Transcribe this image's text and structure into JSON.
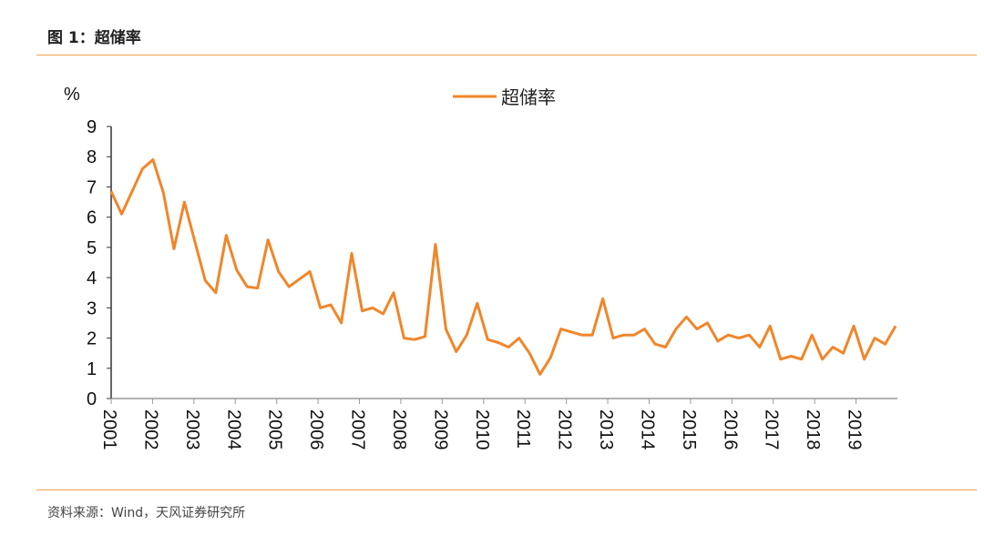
{
  "figure_title": "图 1：超储率",
  "source": "资料来源：Wind，天风证券研究所",
  "chart_data": {
    "type": "line",
    "title": "",
    "ylabel": "%",
    "xlabel": "",
    "ylim": [
      0,
      9
    ],
    "yticks": [
      "0",
      "1",
      "2",
      "3",
      "4",
      "5",
      "6",
      "7",
      "8",
      "9"
    ],
    "xticks": [
      "2001",
      "2002",
      "2003",
      "2004",
      "2005",
      "2006",
      "2007",
      "2008",
      "2009",
      "2010",
      "2011",
      "2012",
      "2013",
      "2014",
      "2015",
      "2016",
      "2017",
      "2018",
      "2019"
    ],
    "xlim": [
      2001,
      2020
    ],
    "grid": false,
    "legend": "top-center",
    "color": "#f0862a",
    "series": [
      {
        "name": "超储率",
        "values": [
          6.85,
          6.1,
          6.85,
          7.6,
          7.9,
          6.8,
          4.95,
          6.5,
          5.2,
          3.9,
          3.5,
          5.4,
          4.25,
          3.7,
          3.65,
          5.25,
          4.2,
          3.7,
          3.95,
          4.2,
          3.0,
          3.1,
          2.5,
          4.8,
          2.9,
          3.0,
          2.8,
          3.5,
          2.0,
          1.95,
          2.05,
          5.1,
          2.3,
          1.55,
          2.1,
          3.15,
          1.95,
          1.85,
          1.7,
          2.0,
          1.5,
          0.8,
          1.35,
          2.3,
          2.2,
          2.1,
          2.1,
          3.3,
          2.0,
          2.1,
          2.1,
          2.3,
          1.8,
          1.7,
          2.3,
          2.7,
          2.3,
          2.5,
          1.9,
          2.1,
          2.0,
          2.1,
          1.7,
          2.4,
          1.3,
          1.4,
          1.3,
          2.1,
          1.3,
          1.7,
          1.5,
          2.4,
          1.3,
          2.0,
          1.8,
          2.4
        ]
      }
    ]
  }
}
